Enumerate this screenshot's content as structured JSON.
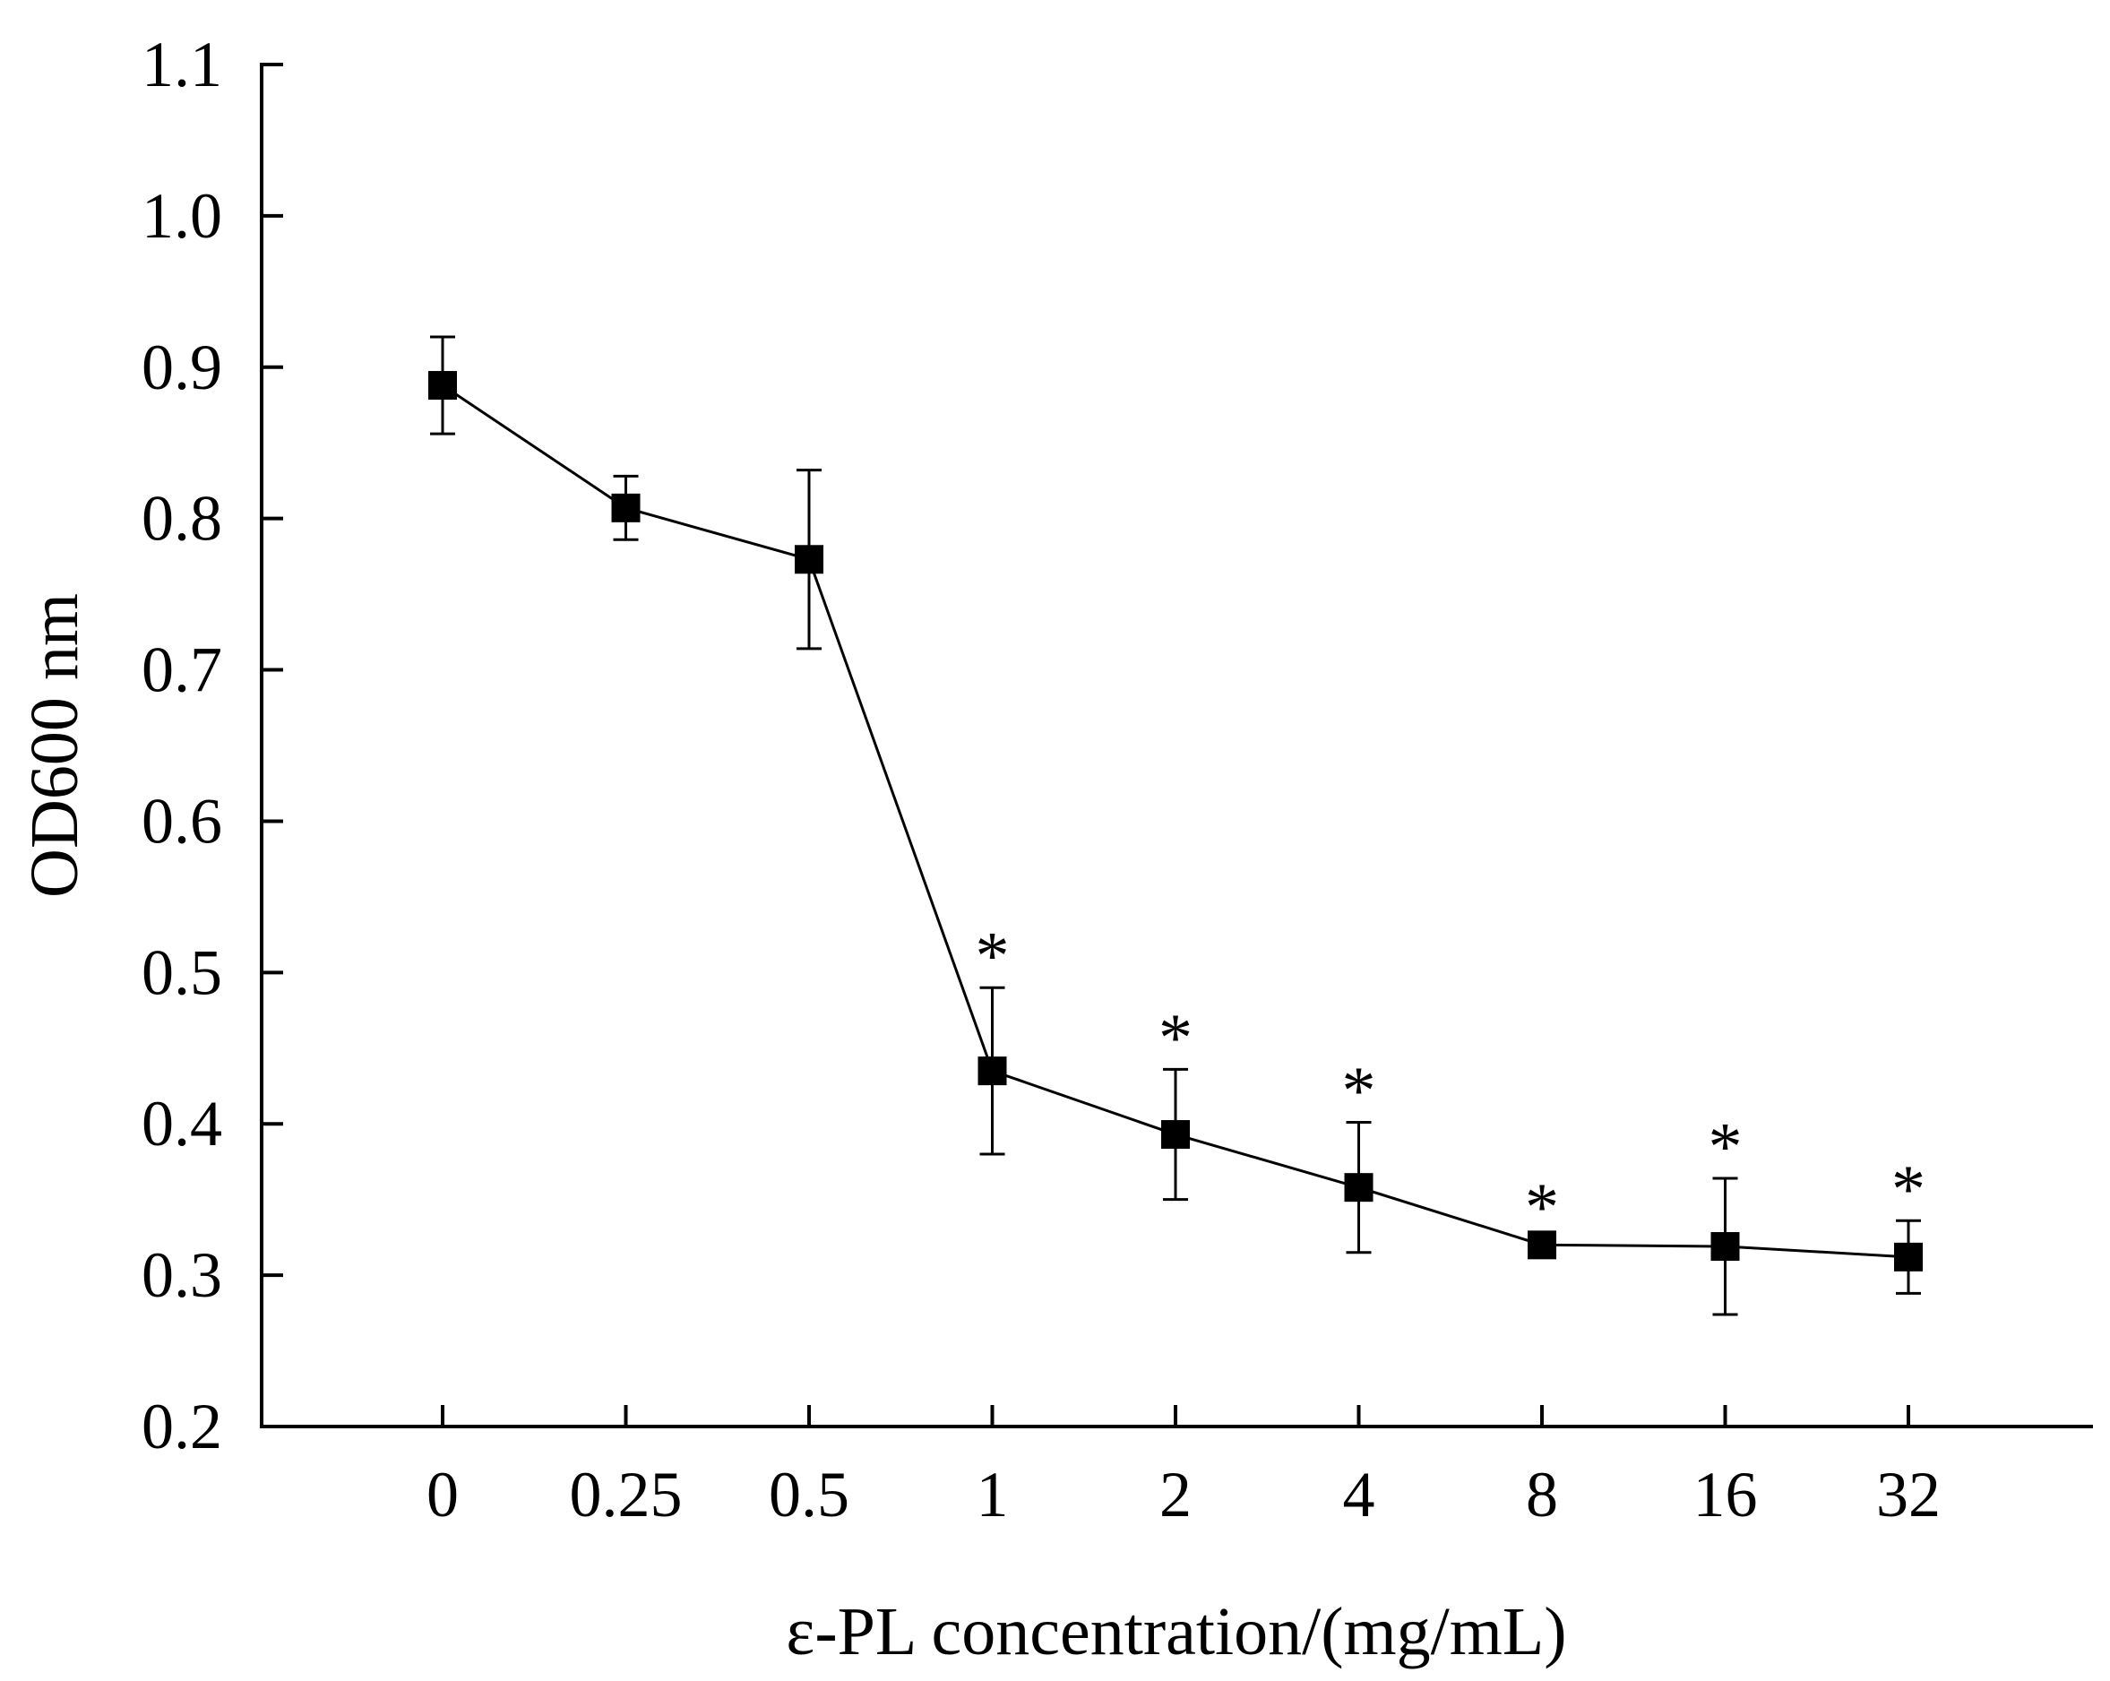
{
  "chart_data": {
    "type": "line",
    "title": "",
    "xlabel": "ε-PL concentration/(mg/mL)",
    "ylabel": "OD600 nm",
    "categories": [
      "0",
      "0.25",
      "0.5",
      "1",
      "2",
      "4",
      "8",
      "16",
      "32"
    ],
    "ylim": [
      0.2,
      1.1
    ],
    "yticks": [
      "0.2",
      "0.3",
      "0.4",
      "0.5",
      "0.6",
      "0.7",
      "0.8",
      "0.9",
      "1.0",
      "1.1"
    ],
    "grid": false,
    "marker": "square",
    "color": "#000000",
    "series": [
      {
        "name": "OD600",
        "values": [
          0.888,
          0.807,
          0.773,
          0.435,
          0.393,
          0.358,
          0.32,
          0.319,
          0.312
        ],
        "error": [
          0.032,
          0.021,
          0.059,
          0.055,
          0.043,
          0.043,
          0.004,
          0.045,
          0.024
        ],
        "significance": [
          "",
          "",
          "",
          "*",
          "*",
          "*",
          "*",
          "*",
          "*"
        ]
      }
    ]
  }
}
